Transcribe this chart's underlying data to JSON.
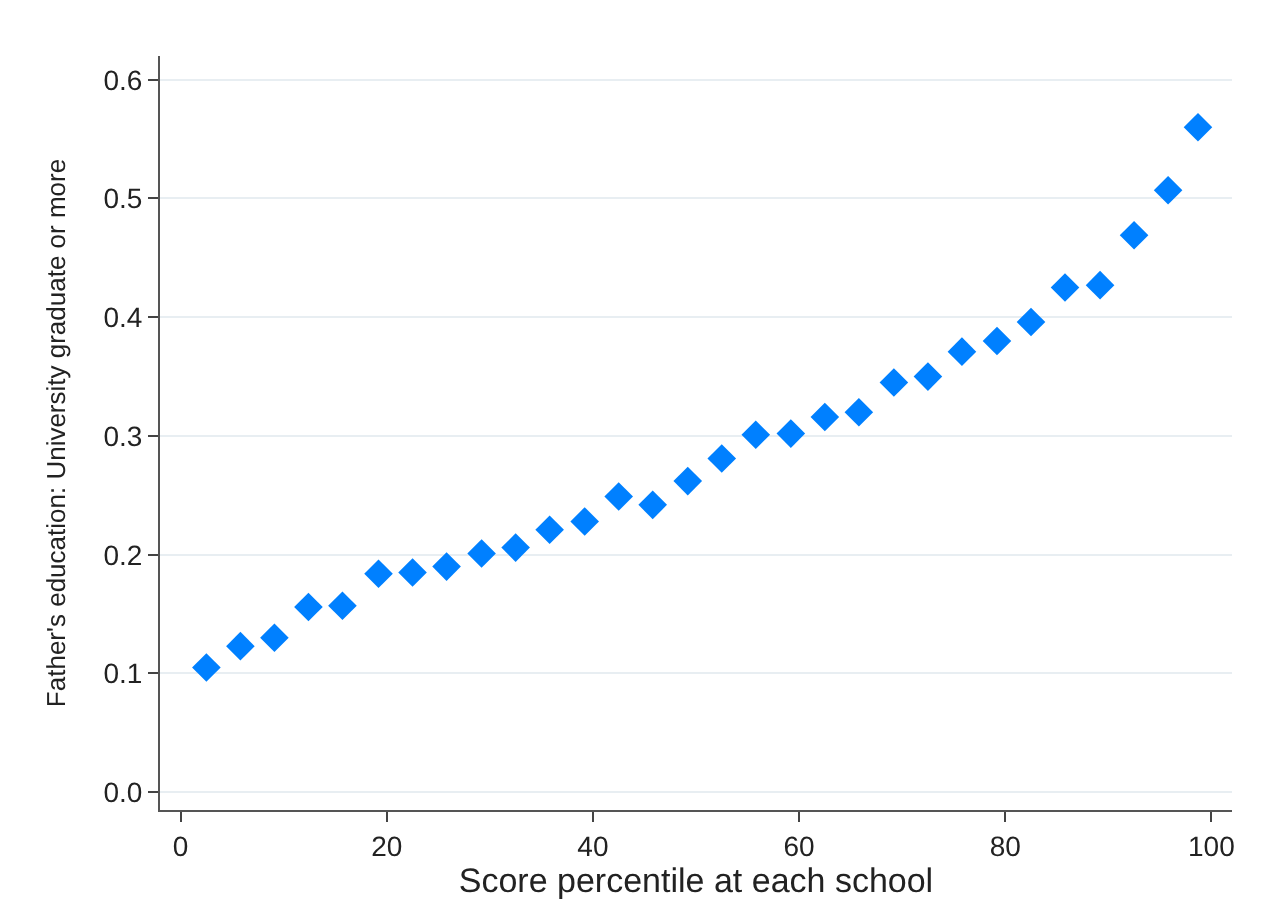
{
  "chart_data": {
    "type": "scatter",
    "xlabel": "Score percentile at each school",
    "ylabel": "Father's education: University graduate or more",
    "x": [
      2.5,
      5.8,
      9.1,
      12.4,
      15.7,
      19.2,
      22.5,
      25.8,
      29.2,
      32.5,
      35.8,
      39.2,
      42.5,
      45.8,
      49.2,
      52.5,
      55.8,
      59.2,
      62.5,
      65.8,
      69.2,
      72.5,
      75.8,
      79.2,
      82.5,
      85.8,
      89.2,
      92.5,
      95.8,
      98.7
    ],
    "series": [
      {
        "color": "#0080ff",
        "values": [
          0.105,
          0.123,
          0.13,
          0.156,
          0.157,
          0.184,
          0.185,
          0.19,
          0.201,
          0.206,
          0.221,
          0.228,
          0.249,
          0.242,
          0.262,
          0.281,
          0.301,
          0.302,
          0.316,
          0.32,
          0.345,
          0.35,
          0.371,
          0.38,
          0.396,
          0.425,
          0.427,
          0.469,
          0.507,
          0.56
        ]
      }
    ],
    "marker": "diamond",
    "xlim": [
      -2,
      102
    ],
    "ylim": [
      -0.015,
      0.62
    ],
    "xticks": [
      0,
      20,
      40,
      60,
      80,
      100
    ],
    "yticks": [
      {
        "value": 0,
        "label": "0.0"
      },
      {
        "value": 0.1,
        "label": "0.1"
      },
      {
        "value": 0.2,
        "label": "0.2"
      },
      {
        "value": 0.3,
        "label": "0.3"
      },
      {
        "value": 0.4,
        "label": "0.4"
      },
      {
        "value": 0.5,
        "label": "0.5"
      },
      {
        "value": 0.6,
        "label": "0.6"
      }
    ],
    "grid": "y",
    "legend": false
  }
}
